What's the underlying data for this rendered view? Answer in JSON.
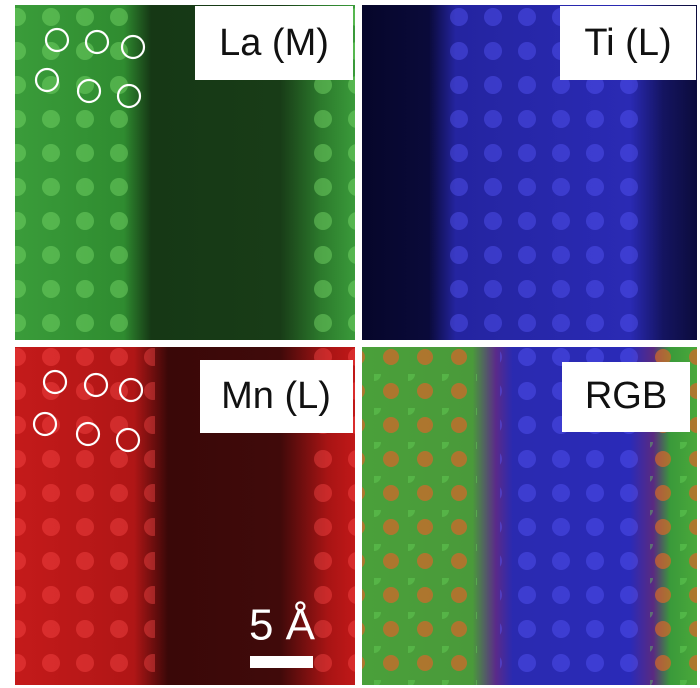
{
  "panels": [
    {
      "label": "La (M)"
    },
    {
      "label": "Ti (L)"
    },
    {
      "label": "Mn (L)"
    },
    {
      "label": "RGB"
    }
  ],
  "scale_bar": {
    "label": "5 Å"
  }
}
